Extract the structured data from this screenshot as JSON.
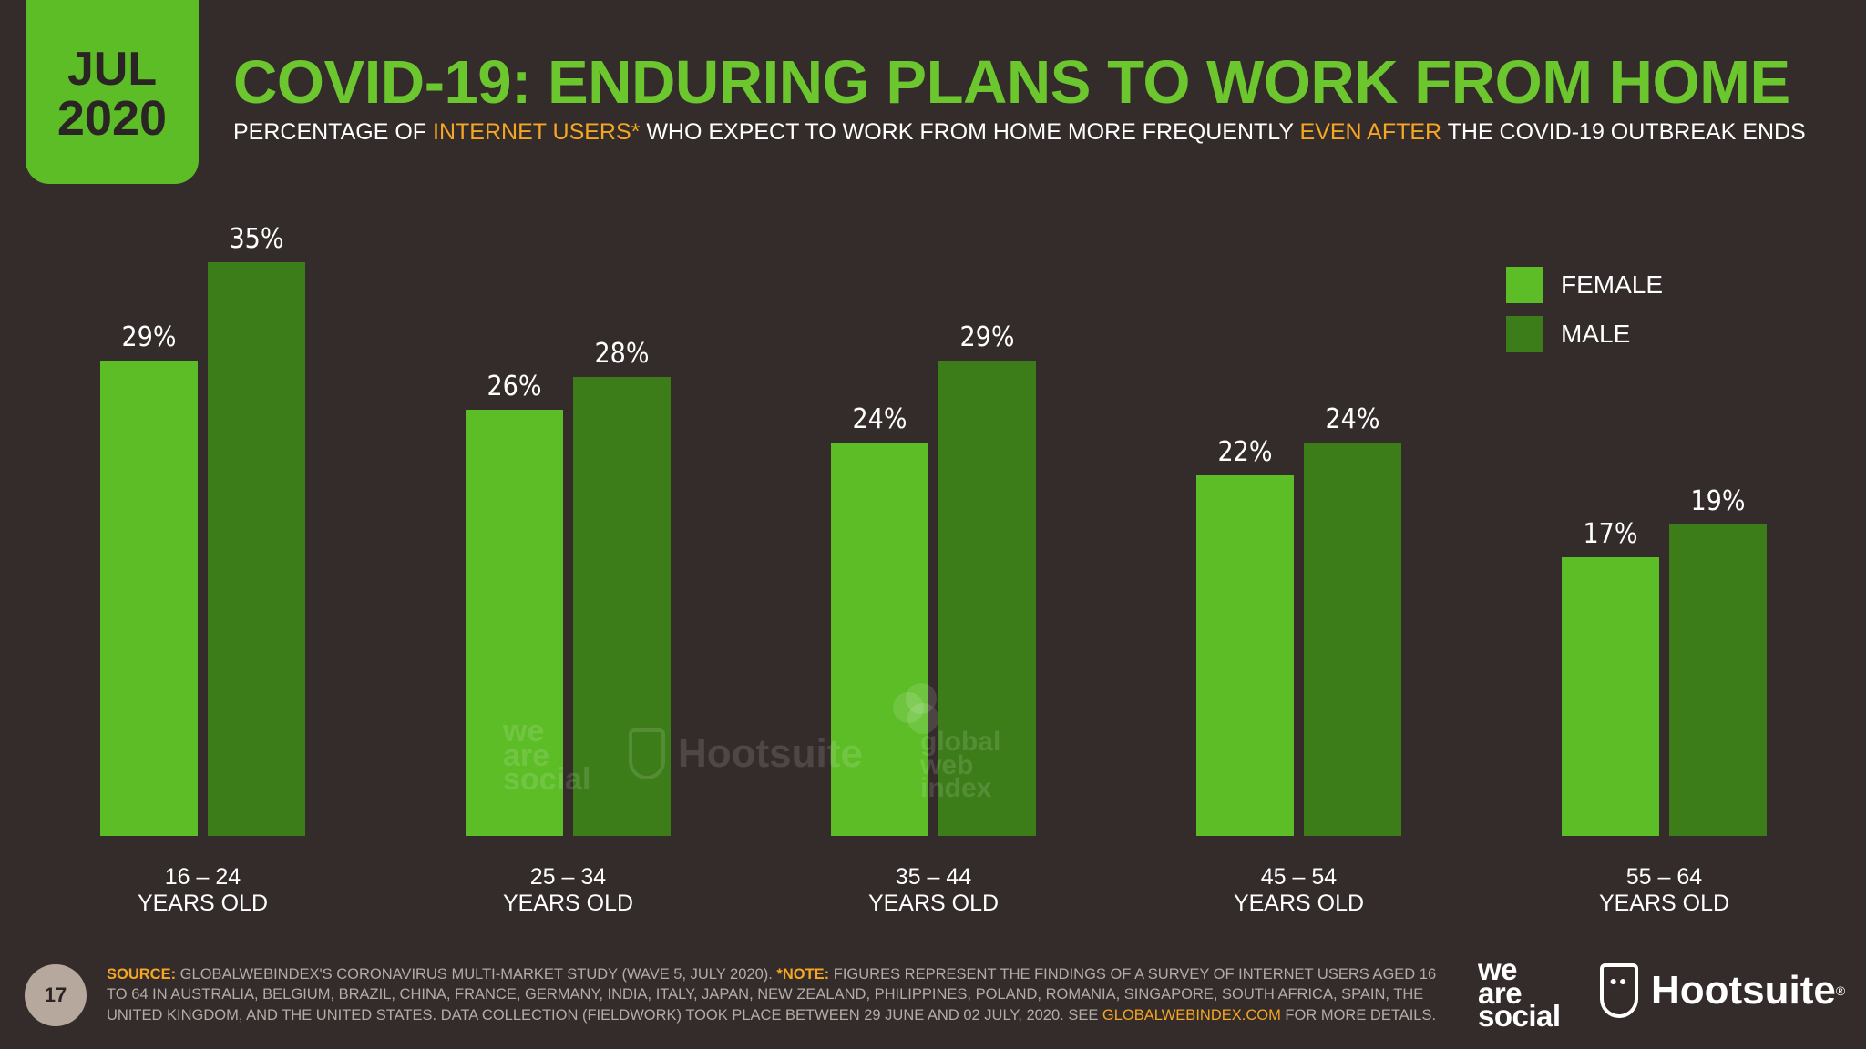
{
  "header": {
    "month": "JUL",
    "year": "2020",
    "title": "COVID-19: ENDURING PLANS TO WORK FROM HOME",
    "subtitle": {
      "part1": "PERCENTAGE OF ",
      "highlight1": "INTERNET USERS*",
      "part2": " WHO EXPECT TO WORK FROM HOME MORE FREQUENTLY ",
      "highlight2": "EVEN AFTER",
      "part3": " THE COVID-19 OUTBREAK ENDS"
    }
  },
  "chart_data": {
    "type": "bar",
    "title": "COVID-19: ENDURING PLANS TO WORK FROM HOME",
    "subtitle": "PERCENTAGE OF INTERNET USERS* WHO EXPECT TO WORK FROM HOME MORE FREQUENTLY EVEN AFTER THE COVID-19 OUTBREAK ENDS",
    "categories": [
      "16 – 24",
      "25 – 34",
      "35 – 44",
      "45 – 54",
      "55 – 64"
    ],
    "category_sublabel": "YEARS OLD",
    "series": [
      {
        "name": "FEMALE",
        "color": "#5cbd26",
        "values": [
          29,
          26,
          24,
          22,
          17
        ]
      },
      {
        "name": "MALE",
        "color": "#3c7d1a",
        "values": [
          35,
          28,
          29,
          24,
          19
        ]
      }
    ],
    "value_suffix": "%",
    "ylim": [
      0,
      35
    ],
    "grid": false,
    "legend_position": "top-right"
  },
  "watermarks": {
    "we_are_social": [
      "we",
      "are",
      "social"
    ],
    "hootsuite": "Hootsuite",
    "gwi": [
      "global",
      "web",
      "index"
    ]
  },
  "footer": {
    "page_number": "17",
    "source_label": "SOURCE:",
    "source_text": " GLOBALWEBINDEX'S CORONAVIRUS MULTI-MARKET STUDY (WAVE 5, JULY 2020). ",
    "note_label": "*NOTE:",
    "note_text": " FIGURES REPRESENT THE FINDINGS OF A SURVEY OF INTERNET USERS AGED 16 TO 64 IN AUSTRALIA, BELGIUM, BRAZIL, CHINA, FRANCE, GERMANY, INDIA, ITALY, JAPAN, NEW ZEALAND, PHILIPPINES, POLAND, ROMANIA, SINGAPORE, SOUTH AFRICA, SPAIN, THE UNITED KINGDOM, AND THE UNITED STATES. DATA COLLECTION (FIELDWORK) TOOK PLACE BETWEEN 29 JUNE AND 02 JULY, 2020. SEE ",
    "link_text": "GLOBALWEBINDEX.COM",
    "end_text": " FOR MORE DETAILS.",
    "logo_we_are_social": [
      "we",
      "are",
      "social"
    ],
    "logo_hootsuite": "Hootsuite",
    "logo_hootsuite_reg": "®"
  },
  "colors": {
    "background": "#342c2b",
    "accent_green": "#5cbd26",
    "dark_green": "#3c7d1a",
    "highlight_orange": "#f5a623"
  }
}
